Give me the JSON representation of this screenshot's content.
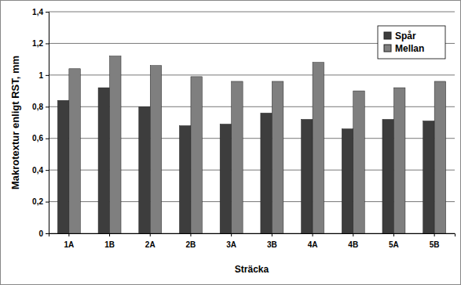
{
  "chart_data": {
    "type": "bar",
    "x_label": "Sträcka",
    "y_label": "Makrotextur enligt RST, mm",
    "categories": [
      "1A",
      "1B",
      "2A",
      "2B",
      "3A",
      "3B",
      "4A",
      "4B",
      "5A",
      "5B"
    ],
    "series": [
      {
        "name": "Spår",
        "color": "#3d3d3d",
        "values": [
          0.84,
          0.92,
          0.8,
          0.68,
          0.69,
          0.76,
          0.72,
          0.66,
          0.72,
          0.71
        ]
      },
      {
        "name": "Mellan",
        "color": "#7f7f7f",
        "values": [
          1.04,
          1.12,
          1.06,
          0.99,
          0.96,
          0.96,
          1.08,
          0.9,
          0.92,
          0.96
        ]
      }
    ],
    "ylim": [
      0,
      1.4
    ],
    "yticks": [
      0,
      {
        "value": 0.2,
        "label": "0,2"
      },
      {
        "value": 0.4,
        "label": "0,4"
      },
      {
        "value": 0.6,
        "label": "0,6"
      },
      {
        "value": 0.8,
        "label": "0,8"
      },
      1,
      {
        "value": 1.2,
        "label": "1,2"
      },
      {
        "value": 1.4,
        "label": "1,4"
      }
    ],
    "grid": true,
    "legend": "upper right"
  }
}
